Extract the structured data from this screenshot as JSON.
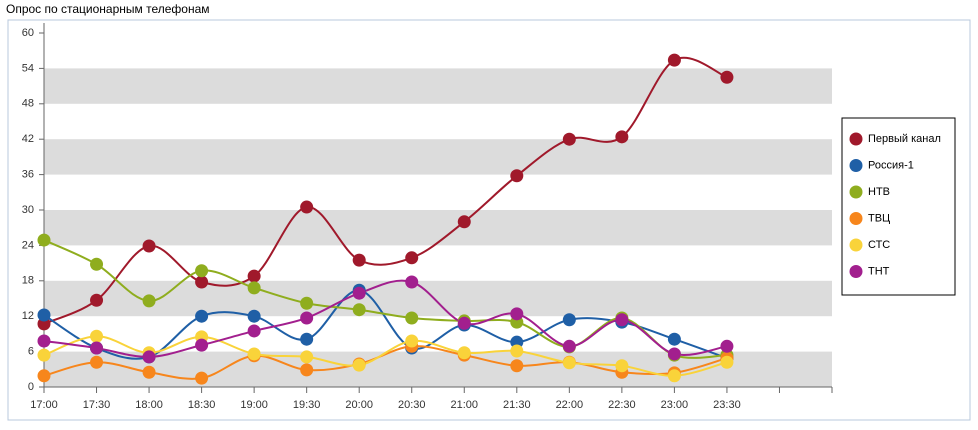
{
  "chart_data": {
    "type": "line",
    "title": "Опрос по стационарным телефонам",
    "categories": [
      "17:00",
      "17:30",
      "18:00",
      "18:30",
      "19:00",
      "19:30",
      "20:00",
      "20:30",
      "21:00",
      "21:30",
      "22:00",
      "22:30",
      "23:00",
      "23:30",
      null,
      null
    ],
    "series": [
      {
        "name": "Первый канал",
        "color": "#a0192b",
        "values": [
          10.7,
          14.7,
          23.9,
          17.8,
          18.8,
          30.5,
          21.5,
          21.9,
          28,
          35.8,
          42,
          42.4,
          55.4,
          52.5,
          null,
          null
        ]
      },
      {
        "name": "Россия-1",
        "color": "#1f5fa6",
        "values": [
          12.2,
          6.6,
          5.1,
          12,
          12,
          8.1,
          16.4,
          6.6,
          10.5,
          7.6,
          11.4,
          11,
          8.1,
          4.9,
          null,
          null
        ]
      },
      {
        "name": "НТВ",
        "color": "#8fad1e",
        "values": [
          24.9,
          20.8,
          14.6,
          19.7,
          16.8,
          14.2,
          13.1,
          11.7,
          11.2,
          11,
          6.8,
          11.7,
          5.4,
          5.4,
          null,
          null
        ]
      },
      {
        "name": "ТВЦ",
        "color": "#f7861c",
        "values": [
          1.9,
          4.2,
          2.5,
          1.5,
          5.3,
          2.9,
          3.9,
          6.9,
          5.4,
          3.6,
          4.2,
          2.5,
          2.4,
          4.9,
          null,
          null
        ]
      },
      {
        "name": "СТС",
        "color": "#f9d33a",
        "values": [
          5.4,
          8.6,
          5.8,
          8.5,
          5.6,
          5.1,
          3.7,
          7.8,
          5.8,
          6.1,
          4.1,
          3.6,
          1.9,
          4.2,
          null,
          null
        ]
      },
      {
        "name": "ТНТ",
        "color": "#a21f8e",
        "values": [
          7.8,
          6.6,
          5.1,
          7.1,
          9.5,
          11.7,
          15.9,
          17.8,
          10.8,
          12.4,
          6.9,
          11.4,
          5.6,
          6.9,
          null,
          null
        ]
      }
    ],
    "ylim": [
      0,
      60
    ],
    "yticks": [
      0,
      6,
      12,
      18,
      24,
      30,
      36,
      42,
      48,
      54,
      60
    ],
    "grid": true,
    "legend": "right"
  }
}
